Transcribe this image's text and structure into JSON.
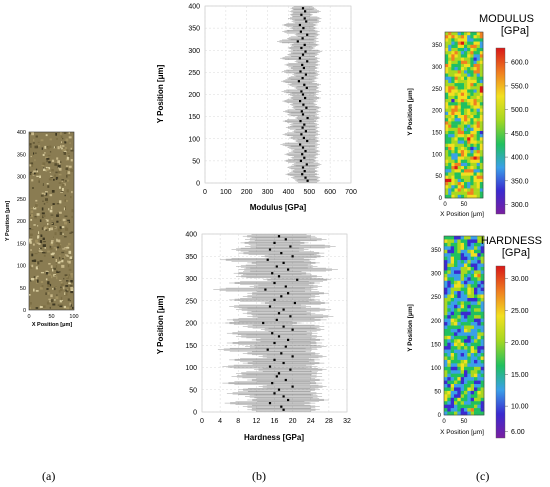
{
  "panels": {
    "a": "(a)",
    "b": "(b)",
    "c": "(c)"
  },
  "chart_data": [
    {
      "id": "micrograph",
      "type": "image",
      "xlabel": "X Position [μm]",
      "ylabel": "Y Position [μm]",
      "xlim": [
        0,
        100
      ],
      "ylim": [
        0,
        400
      ],
      "x_ticks": [
        0,
        50,
        100
      ],
      "y_ticks": [
        0,
        50,
        100,
        150,
        200,
        250,
        300,
        350,
        400
      ]
    },
    {
      "id": "modulus-profile",
      "type": "scatter",
      "xlabel": "Modulus [GPa]",
      "ylabel": "Y Position [μm]",
      "xlim": [
        0,
        700
      ],
      "ylim": [
        0,
        400
      ],
      "x_ticks": [
        0,
        100,
        200,
        300,
        400,
        500,
        600,
        700
      ],
      "y_ticks": [
        0,
        50,
        100,
        150,
        200,
        250,
        300,
        350,
        400
      ],
      "grid": true,
      "series": [
        {
          "y": [
            395,
            388,
            380,
            372,
            365,
            357,
            350,
            342,
            335,
            327,
            320,
            312,
            305,
            297,
            290,
            282,
            275,
            267,
            260,
            252,
            245,
            237,
            230,
            222,
            215,
            207,
            200,
            192,
            185,
            177,
            170,
            162,
            155,
            147,
            140,
            132,
            125,
            117,
            110,
            102,
            95,
            87,
            80,
            72,
            65,
            57,
            50,
            42,
            35,
            27,
            20,
            12,
            5
          ],
          "mean": [
            470,
            480,
            462,
            478,
            485,
            455,
            472,
            460,
            490,
            468,
            445,
            478,
            462,
            482,
            470,
            455,
            490,
            466,
            474,
            458,
            484,
            468,
            450,
            476,
            488,
            462,
            470,
            480,
            456,
            472,
            486,
            464,
            470,
            492,
            458,
            476,
            468,
            484,
            462,
            474,
            490,
            456,
            470,
            482,
            466,
            476,
            460,
            488,
            470,
            478,
            466,
            482,
            492
          ],
          "spread": [
            60,
            75,
            55,
            80,
            70,
            85,
            65,
            90,
            60,
            75,
            100,
            70,
            65,
            80,
            75,
            95,
            60,
            85,
            70,
            90,
            65,
            75,
            85,
            80,
            60,
            95,
            70,
            75,
            85,
            65,
            70,
            90,
            75,
            60,
            85,
            70,
            80,
            65,
            90,
            70,
            60,
            95,
            75,
            70,
            85,
            65,
            80,
            70,
            75,
            65,
            80,
            70,
            60
          ]
        }
      ]
    },
    {
      "id": "hardness-profile",
      "type": "scatter",
      "xlabel": "Hardness [GPa]",
      "ylabel": "Y Position [μm]",
      "xlim": [
        0,
        32
      ],
      "ylim": [
        0,
        400
      ],
      "x_ticks": [
        0,
        4,
        8,
        12,
        16,
        20,
        24,
        28,
        32
      ],
      "y_ticks": [
        0,
        50,
        100,
        150,
        200,
        250,
        300,
        350,
        400
      ],
      "grid": true,
      "series": [
        {
          "y": [
            395,
            388,
            380,
            372,
            365,
            357,
            350,
            342,
            335,
            327,
            320,
            312,
            305,
            297,
            290,
            282,
            275,
            267,
            260,
            252,
            245,
            237,
            230,
            222,
            215,
            207,
            200,
            192,
            185,
            177,
            170,
            162,
            155,
            147,
            140,
            132,
            125,
            117,
            110,
            102,
            95,
            87,
            80,
            72,
            65,
            57,
            50,
            42,
            35,
            27,
            20,
            12,
            5
          ],
          "mean": [
            17,
            18.5,
            16,
            19.5,
            15,
            17.5,
            20,
            14.5,
            18,
            16.5,
            19,
            15.5,
            17,
            21,
            16,
            18.5,
            14,
            19,
            17.5,
            16,
            20.5,
            15,
            18,
            17,
            19.5,
            16.5,
            13.5,
            18,
            20,
            15.5,
            17,
            19,
            16,
            18.5,
            14.5,
            17.5,
            20,
            16,
            18,
            15,
            19.5,
            17,
            16.5,
            18.5,
            15.5,
            20,
            17,
            16,
            18,
            19,
            15,
            17.5,
            18
          ],
          "spread": [
            8,
            9,
            7.5,
            10,
            8.5,
            9.5,
            7,
            10.5,
            8,
            9,
            11,
            8.5,
            9.5,
            7.5,
            10,
            8,
            11.5,
            9,
            8.5,
            10,
            7.5,
            9,
            10.5,
            8,
            9.5,
            11,
            8.5,
            9,
            7,
            10,
            9.5,
            8,
            10.5,
            9,
            11,
            8.5,
            7.5,
            10,
            9,
            10.5,
            8,
            9.5,
            10,
            8.5,
            11,
            7.5,
            9,
            10.5,
            8.5,
            9,
            10,
            8.5,
            8
          ]
        }
      ]
    },
    {
      "id": "modulus-map",
      "type": "heatmap",
      "title": "MODULUS",
      "unit": "[GPa]",
      "xlabel": "X Position [μm]",
      "ylabel": "Y Position [μm]",
      "xlim": [
        0,
        100
      ],
      "ylim": [
        0,
        380
      ],
      "x_ticks": [
        0,
        50
      ],
      "y_ticks": [
        0,
        50,
        100,
        150,
        200,
        250,
        300,
        350
      ],
      "colorbar_ticks": [
        "300.0",
        "350.0",
        "400.0",
        "450.0",
        "500.0",
        "550.0",
        "600.0"
      ],
      "colorbar_range": [
        280,
        630
      ]
    },
    {
      "id": "hardness-map",
      "type": "heatmap",
      "title": "HARDNESS",
      "unit": "[GPa]",
      "xlabel": "X Position [μm]",
      "ylabel": "Y Position [μm]",
      "xlim": [
        0,
        100
      ],
      "ylim": [
        0,
        380
      ],
      "x_ticks": [
        0,
        50
      ],
      "y_ticks": [
        0,
        50,
        100,
        150,
        200,
        250,
        300,
        350
      ],
      "colorbar_ticks": [
        "6.00",
        "10.00",
        "15.00",
        "20.00",
        "25.00",
        "30.00"
      ],
      "colorbar_range": [
        5,
        32
      ]
    }
  ]
}
